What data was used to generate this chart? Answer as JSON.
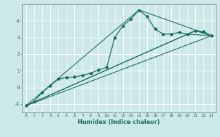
{
  "xlabel": "Humidex (Indice chaleur)",
  "ylabel": "",
  "background_color": "#cce8e8",
  "grid_color": "#ffffff",
  "line_color": "#1a6b60",
  "xlim": [
    -0.5,
    23.5
  ],
  "ylim": [
    -1.5,
    5.0
  ],
  "yticks": [
    -1,
    0,
    1,
    2,
    3,
    4
  ],
  "xticks": [
    0,
    1,
    2,
    3,
    4,
    5,
    6,
    7,
    8,
    9,
    10,
    11,
    12,
    13,
    14,
    15,
    16,
    17,
    18,
    19,
    20,
    21,
    22,
    23
  ],
  "curve1_x": [
    0,
    1,
    2,
    3,
    4,
    5,
    6,
    7,
    8,
    9,
    10,
    11,
    12,
    13,
    14,
    15,
    16,
    17,
    18,
    19,
    20,
    21,
    22,
    23
  ],
  "curve1_y": [
    -1.1,
    -0.85,
    -0.3,
    0.1,
    0.5,
    0.6,
    0.62,
    0.72,
    0.85,
    1.05,
    1.2,
    3.0,
    3.7,
    4.1,
    4.65,
    4.25,
    3.5,
    3.2,
    3.2,
    3.3,
    3.2,
    3.4,
    3.35,
    3.1
  ],
  "curve2_x": [
    0,
    14,
    23
  ],
  "curve2_y": [
    -1.1,
    4.65,
    3.1
  ],
  "curve3_x": [
    0,
    23
  ],
  "curve3_y": [
    -1.1,
    3.1
  ],
  "curve4_x": [
    0,
    21,
    23
  ],
  "curve4_y": [
    -1.1,
    3.4,
    3.1
  ],
  "curve5_x": [
    0,
    20,
    23
  ],
  "curve5_y": [
    -1.1,
    3.2,
    3.1
  ]
}
